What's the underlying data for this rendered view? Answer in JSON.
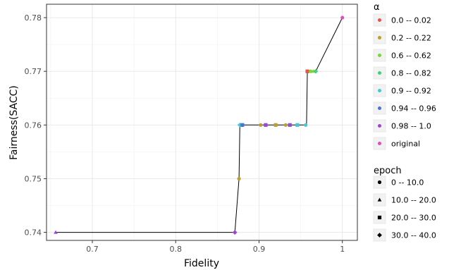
{
  "chart_data": {
    "type": "scatter",
    "xlabel": "Fidelity",
    "ylabel": "Fairness(SACC)",
    "xlim": [
      0.645,
      1.018
    ],
    "ylim": [
      0.7385,
      0.7825
    ],
    "x_ticks": [
      0.7,
      0.8,
      0.9,
      1.0
    ],
    "x_tick_labels": [
      "0.7",
      "0.8",
      "0.9",
      "1"
    ],
    "y_ticks": [
      0.74,
      0.75,
      0.76,
      0.77,
      0.78
    ],
    "y_tick_labels": [
      "0.74",
      "0.75",
      "0.76",
      "0.77",
      "0.78"
    ],
    "grid": true,
    "legend_placement": "right",
    "color_legend": {
      "title": "α",
      "entries": [
        {
          "label": "0.0 -- 0.02",
          "color": "#e2554b"
        },
        {
          "label": "0.2 -- 0.22",
          "color": "#b8a22c"
        },
        {
          "label": "0.6 -- 0.62",
          "color": "#7bd43c"
        },
        {
          "label": "0.8 -- 0.82",
          "color": "#45cf7a"
        },
        {
          "label": "0.9 -- 0.92",
          "color": "#3fc9d6"
        },
        {
          "label": "0.94 -- 0.96",
          "color": "#4d6fd8"
        },
        {
          "label": "0.98 -- 1.0",
          "color": "#9a46d8"
        },
        {
          "label": "original",
          "color": "#dd4fba"
        }
      ]
    },
    "shape_legend": {
      "title": "epoch",
      "entries": [
        {
          "label": "0 -- 10.0",
          "shape": "circle"
        },
        {
          "label": "10.0 -- 20.0",
          "shape": "triangle"
        },
        {
          "label": "20.0 -- 30.0",
          "shape": "square"
        },
        {
          "label": "30.0 -- 40.0",
          "shape": "diamond"
        }
      ]
    },
    "frontier_line": {
      "color": "#000000",
      "points": [
        [
          0.656,
          0.74
        ],
        [
          0.871,
          0.74
        ],
        [
          0.876,
          0.75
        ],
        [
          0.877,
          0.76
        ],
        [
          0.957,
          0.76
        ],
        [
          0.958,
          0.77
        ],
        [
          0.968,
          0.77
        ],
        [
          1.0,
          0.78
        ]
      ]
    },
    "points": [
      {
        "x": 0.656,
        "y": 0.74,
        "alpha": "0.98 -- 1.0",
        "epoch": "10.0 -- 20.0"
      },
      {
        "x": 0.871,
        "y": 0.74,
        "alpha": "0.98 -- 1.0",
        "epoch": "30.0 -- 40.0"
      },
      {
        "x": 0.876,
        "y": 0.75,
        "alpha": "0.2 -- 0.22",
        "epoch": "0 -- 10.0"
      },
      {
        "x": 0.877,
        "y": 0.76,
        "alpha": "0.9 -- 0.92",
        "epoch": "30.0 -- 40.0"
      },
      {
        "x": 0.88,
        "y": 0.76,
        "alpha": "0.94 -- 0.96",
        "epoch": "20.0 -- 30.0"
      },
      {
        "x": 0.902,
        "y": 0.76,
        "alpha": "0.2 -- 0.22",
        "epoch": "0 -- 10.0"
      },
      {
        "x": 0.908,
        "y": 0.76,
        "alpha": "0.98 -- 1.0",
        "epoch": "20.0 -- 30.0"
      },
      {
        "x": 0.92,
        "y": 0.76,
        "alpha": "0.2 -- 0.22",
        "epoch": "20.0 -- 30.0"
      },
      {
        "x": 0.932,
        "y": 0.76,
        "alpha": "0.2 -- 0.22",
        "epoch": "0 -- 10.0"
      },
      {
        "x": 0.937,
        "y": 0.76,
        "alpha": "0.98 -- 1.0",
        "epoch": "20.0 -- 30.0"
      },
      {
        "x": 0.946,
        "y": 0.76,
        "alpha": "0.9 -- 0.92",
        "epoch": "20.0 -- 30.0"
      },
      {
        "x": 0.956,
        "y": 0.76,
        "alpha": "0.9 -- 0.92",
        "epoch": "0 -- 10.0"
      },
      {
        "x": 0.958,
        "y": 0.77,
        "alpha": "0.0 -- 0.02",
        "epoch": "20.0 -- 30.0"
      },
      {
        "x": 0.962,
        "y": 0.77,
        "alpha": "0.6 -- 0.62",
        "epoch": "0 -- 10.0"
      },
      {
        "x": 0.965,
        "y": 0.77,
        "alpha": "0.6 -- 0.62",
        "epoch": "10.0 -- 20.0"
      },
      {
        "x": 0.968,
        "y": 0.77,
        "alpha": "0.8 -- 0.82",
        "epoch": "30.0 -- 40.0"
      },
      {
        "x": 1.0,
        "y": 0.78,
        "alpha": "original",
        "epoch": "0 -- 10.0"
      }
    ]
  }
}
